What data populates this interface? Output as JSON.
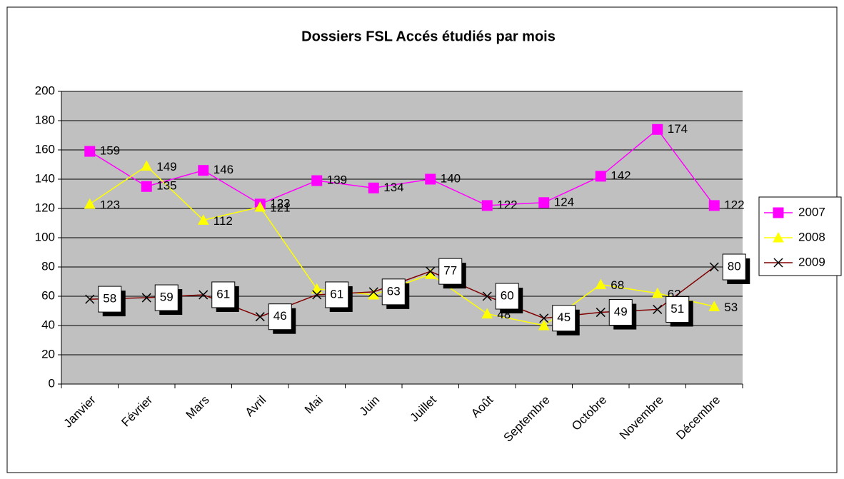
{
  "chart_data": {
    "type": "line",
    "title": "Dossiers FSL Accés étudiés par mois",
    "categories": [
      "Janvier",
      "Février",
      "Mars",
      "Avril",
      "Mai",
      "Juin",
      "Juillet",
      "Août",
      "Septembre",
      "Octobre",
      "Novembre",
      "Décembre"
    ],
    "series": [
      {
        "name": "2007",
        "color": "#ff00ff",
        "values": [
          159,
          135,
          146,
          123,
          139,
          134,
          140,
          122,
          124,
          142,
          174,
          122
        ]
      },
      {
        "name": "2008",
        "color": "#ffff00",
        "values": [
          123,
          149,
          112,
          121,
          65,
          61,
          75,
          48,
          40,
          68,
          62,
          53
        ]
      },
      {
        "name": "2009",
        "color": "#800000",
        "values": [
          58,
          59,
          61,
          46,
          61,
          63,
          77,
          60,
          45,
          49,
          51,
          80
        ]
      }
    ],
    "ylim": [
      0,
      200
    ],
    "yticks": [
      0,
      20,
      40,
      60,
      80,
      100,
      120,
      140,
      160,
      180,
      200
    ],
    "grid": true,
    "legend": "right"
  }
}
